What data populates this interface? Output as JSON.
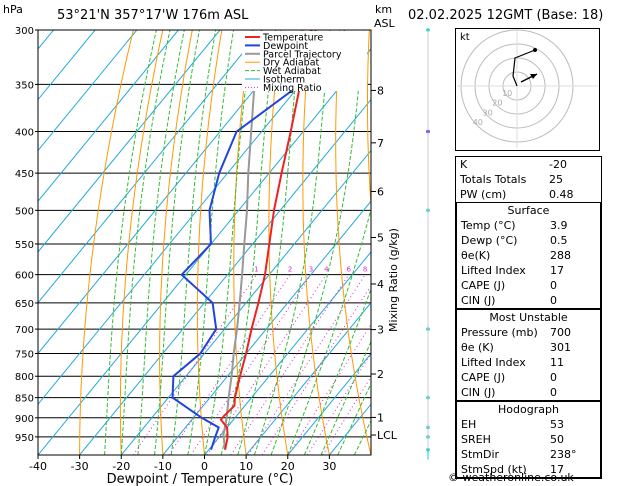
{
  "header": {
    "location": "53°21'N  357°17'W  176m  ASL",
    "datetime": "02.02.2025  12GMT  (Base: 18)",
    "hpa_label": "hPa",
    "km_label": "km",
    "asl_label": "ASL"
  },
  "chart_data": {
    "type": "skew-t",
    "xlabel": "Dewpoint / Temperature (°C)",
    "ylabel": "Mixing Ratio (g/kg)",
    "xlim": [
      -40,
      40
    ],
    "x_ticks": [
      -40,
      -30,
      -20,
      -10,
      0,
      10,
      20,
      30
    ],
    "pressure_range": [
      300,
      1000
    ],
    "pressure_ticks": [
      300,
      350,
      400,
      450,
      500,
      550,
      600,
      650,
      700,
      750,
      800,
      850,
      900,
      950
    ],
    "altitude_ticks": [
      {
        "km": "8",
        "p": 356
      },
      {
        "km": "7",
        "p": 413
      },
      {
        "km": "6",
        "p": 474
      },
      {
        "km": "5",
        "p": 540
      },
      {
        "km": "4",
        "p": 616
      },
      {
        "km": "3",
        "p": 701
      },
      {
        "km": "2",
        "p": 795
      },
      {
        "km": "1",
        "p": 899
      },
      {
        "km": "LCL",
        "p": 945
      }
    ],
    "mixing_ratio_labels": [
      "1",
      "2",
      "3",
      "4",
      "6",
      "8",
      "10",
      "15",
      "20",
      "25"
    ],
    "mixing_ratio_values": [
      1,
      2,
      3,
      4,
      6,
      8,
      10,
      15,
      20,
      25
    ],
    "legend": [
      "Temperature",
      "Dewpoint",
      "Parcel Trajectory",
      "Dry Adiabat",
      "Wet Adiabat",
      "Isotherm",
      "Mixing Ratio"
    ],
    "colors": {
      "temperature": "#ee2222",
      "dewpoint": "#2244dd",
      "parcel": "#999999",
      "dry_adiabat": "#ff9900",
      "wet_adiabat": "#33bb33",
      "isotherm": "#22aadd",
      "mixing_ratio": "#dd22dd"
    },
    "temperature": [
      {
        "p": 985,
        "t": 3.9
      },
      {
        "p": 950,
        "t": 2.0
      },
      {
        "p": 925,
        "t": 0.0
      },
      {
        "p": 905,
        "t": -3.0
      },
      {
        "p": 895,
        "t": -3.0
      },
      {
        "p": 870,
        "t": -2.5
      },
      {
        "p": 850,
        "t": -4.0
      },
      {
        "p": 800,
        "t": -7.0
      },
      {
        "p": 750,
        "t": -10.0
      },
      {
        "p": 700,
        "t": -13.5
      },
      {
        "p": 650,
        "t": -17.0
      },
      {
        "p": 600,
        "t": -21.0
      },
      {
        "p": 550,
        "t": -26.0
      },
      {
        "p": 500,
        "t": -31.5
      },
      {
        "p": 450,
        "t": -37.0
      },
      {
        "p": 400,
        "t": -43.0
      },
      {
        "p": 350,
        "t": -50.0
      },
      {
        "p": 300,
        "t": -57.0
      }
    ],
    "dewpoint": [
      {
        "p": 985,
        "t": 0.5
      },
      {
        "p": 950,
        "t": -1.0
      },
      {
        "p": 925,
        "t": -2.0
      },
      {
        "p": 900,
        "t": -8.0
      },
      {
        "p": 850,
        "t": -19.0
      },
      {
        "p": 800,
        "t": -23.0
      },
      {
        "p": 750,
        "t": -21.0
      },
      {
        "p": 700,
        "t": -22.0
      },
      {
        "p": 650,
        "t": -28.0
      },
      {
        "p": 600,
        "t": -41.0
      },
      {
        "p": 550,
        "t": -40.0
      },
      {
        "p": 500,
        "t": -47.0
      },
      {
        "p": 450,
        "t": -52.0
      },
      {
        "p": 400,
        "t": -56.0
      },
      {
        "p": 350,
        "t": -50.0
      },
      {
        "p": 300,
        "t": -58.0
      }
    ],
    "parcel": [
      {
        "p": 985,
        "t": 3.9
      },
      {
        "p": 945,
        "t": 0.6
      },
      {
        "p": 900,
        "t": -2.0
      },
      {
        "p": 850,
        "t": -5.5
      },
      {
        "p": 800,
        "t": -9.0
      },
      {
        "p": 750,
        "t": -13.0
      },
      {
        "p": 700,
        "t": -17.0
      },
      {
        "p": 650,
        "t": -21.5
      },
      {
        "p": 600,
        "t": -26.5
      },
      {
        "p": 550,
        "t": -32.0
      },
      {
        "p": 500,
        "t": -38.0
      },
      {
        "p": 450,
        "t": -45.0
      },
      {
        "p": 400,
        "t": -52.5
      },
      {
        "p": 350,
        "t": -61.0
      },
      {
        "p": 300,
        "t": -70.0
      }
    ]
  },
  "hodograph": {
    "label": "kt",
    "ring_labels": [
      "10",
      "20",
      "30",
      "40"
    ]
  },
  "indices": [
    {
      "key": "K",
      "value": "-20"
    },
    {
      "key": "Totals Totals",
      "value": "25"
    },
    {
      "key": "PW (cm)",
      "value": "0.48"
    }
  ],
  "surface": {
    "title": "Surface",
    "rows": [
      {
        "key": "Temp (°C)",
        "value": "3.9"
      },
      {
        "key": "Dewp (°C)",
        "value": "0.5"
      },
      {
        "key": "θe(K)",
        "value": "288"
      },
      {
        "key": "Lifted Index",
        "value": "17"
      },
      {
        "key": "CAPE (J)",
        "value": "0"
      },
      {
        "key": "CIN (J)",
        "value": "0"
      }
    ]
  },
  "most_unstable": {
    "title": "Most Unstable",
    "rows": [
      {
        "key": "Pressure (mb)",
        "value": "700"
      },
      {
        "key": "θe (K)",
        "value": "301"
      },
      {
        "key": "Lifted Index",
        "value": "11"
      },
      {
        "key": "CAPE (J)",
        "value": "0"
      },
      {
        "key": "CIN (J)",
        "value": "0"
      }
    ]
  },
  "hodograph_table": {
    "title": "Hodograph",
    "rows": [
      {
        "key": "EH",
        "value": "53"
      },
      {
        "key": "SREH",
        "value": "50"
      },
      {
        "key": "StmDir",
        "value": "238°"
      },
      {
        "key": "StmSpd (kt)",
        "value": "17"
      }
    ]
  },
  "credit": "© weatheronline.co.uk"
}
